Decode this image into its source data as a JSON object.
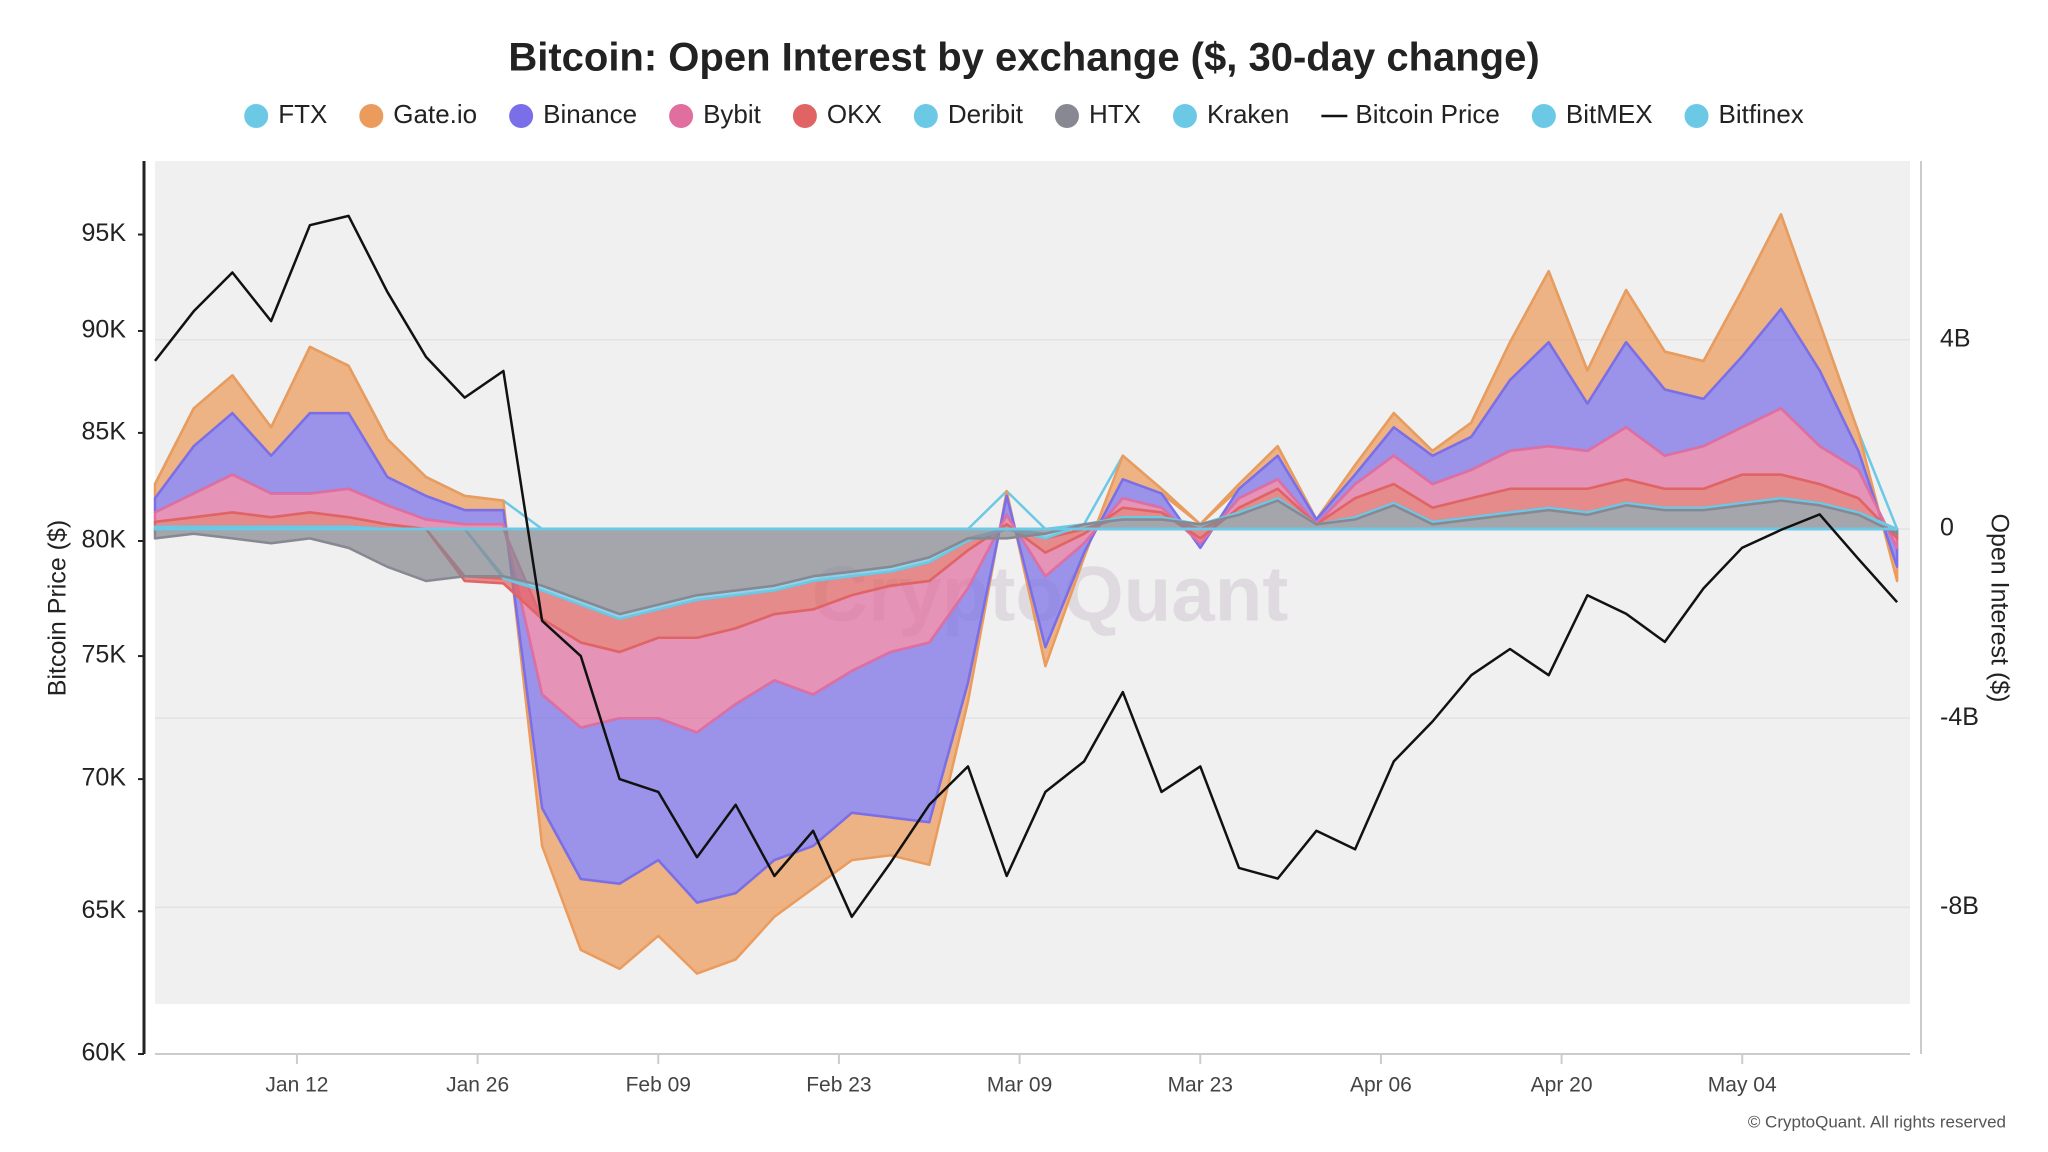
{
  "chart_data": {
    "type": "area",
    "title": "Bitcoin: Open Interest by exchange ($, 30-day change)",
    "ylabel": "Bitcoin Price ($)",
    "y2label": "Open Interest ($)",
    "watermark": "CryptoQuant",
    "credit": "© CryptoQuant. All rights reserved",
    "yscale": "log",
    "grid": true,
    "legend": "top",
    "xlim": [
      0,
      136
    ],
    "ylim": [
      60000,
      99000
    ],
    "y2lim": [
      -11.1,
      7.78
    ],
    "xticks": [
      {
        "value": 11,
        "label": "Jan 12"
      },
      {
        "value": 25,
        "label": "Jan 26"
      },
      {
        "value": 39,
        "label": "Feb 09"
      },
      {
        "value": 53,
        "label": "Feb 23"
      },
      {
        "value": 67,
        "label": "Mar 09"
      },
      {
        "value": 81,
        "label": "Mar 23"
      },
      {
        "value": 95,
        "label": "Apr 06"
      },
      {
        "value": 109,
        "label": "Apr 20"
      },
      {
        "value": 123,
        "label": "May 04"
      }
    ],
    "yticks": [
      {
        "value": 60000,
        "label": "60K"
      },
      {
        "value": 65000,
        "label": "65K"
      },
      {
        "value": 70000,
        "label": "70K"
      },
      {
        "value": 75000,
        "label": "75K"
      },
      {
        "value": 80000,
        "label": "80K"
      },
      {
        "value": 85000,
        "label": "85K"
      },
      {
        "value": 90000,
        "label": "90K"
      },
      {
        "value": 95000,
        "label": "95K"
      }
    ],
    "y2ticks": [
      {
        "value": -8,
        "label": "-8B"
      },
      {
        "value": -4,
        "label": "-4B"
      },
      0,
      {
        "value": 4,
        "label": "4B"
      }
    ],
    "x": [
      0,
      3,
      6,
      9,
      12,
      15,
      18,
      21,
      24,
      27,
      30,
      33,
      36,
      39,
      42,
      45,
      48,
      51,
      54,
      57,
      60,
      63,
      66,
      69,
      72,
      75,
      78,
      81,
      84,
      87,
      90,
      93,
      96,
      99,
      102,
      105,
      108,
      111,
      114,
      117,
      120,
      123,
      126,
      129,
      132,
      135
    ],
    "series": [
      {
        "name": "FTX",
        "color": "#6cc9e6",
        "axis": "y2",
        "values": [
          0,
          0,
          0,
          0,
          0,
          0,
          0,
          0,
          0,
          0,
          0,
          0,
          0,
          0,
          0,
          0,
          0,
          0,
          0,
          0,
          0,
          0,
          0,
          0,
          0,
          0,
          0,
          0,
          0,
          0,
          0,
          0,
          0,
          0,
          0,
          0,
          0,
          0,
          0,
          0,
          0,
          0,
          0,
          0,
          0,
          0
        ]
      },
      {
        "name": "Gate.io",
        "color": "#eb9b5b",
        "axis": "y2",
        "values": [
          0.3,
          0.8,
          0.8,
          0.6,
          1.4,
          1.0,
          0.8,
          0.4,
          0.3,
          0.2,
          -0.8,
          -1.5,
          -1.8,
          -1.6,
          -1.5,
          -1.4,
          -1.2,
          -0.9,
          -1.0,
          -0.8,
          -0.9,
          -0.4,
          0.1,
          -0.4,
          -0.1,
          0.5,
          0.1,
          0.0,
          0.1,
          0.2,
          0.0,
          0.2,
          0.3,
          0.1,
          0.3,
          0.8,
          1.5,
          0.7,
          1.1,
          0.8,
          0.8,
          1.4,
          2.0,
          1.0,
          0.4,
          -0.3
        ]
      },
      {
        "name": "Binance",
        "color": "#7a6fe8",
        "axis": "y2",
        "values": [
          0.3,
          1.0,
          1.3,
          0.8,
          1.7,
          1.6,
          0.6,
          0.5,
          0.3,
          0.3,
          -2.4,
          -3.2,
          -3.5,
          -3.0,
          -3.6,
          -4.0,
          -3.8,
          -3.2,
          -3.0,
          -3.5,
          -3.8,
          -2.0,
          0.4,
          -1.5,
          -0.2,
          0.4,
          0.3,
          -0.1,
          0.2,
          0.5,
          0.1,
          0.2,
          0.6,
          0.6,
          0.7,
          1.5,
          2.2,
          1.0,
          1.8,
          1.4,
          1.0,
          1.5,
          2.1,
          1.6,
          0.4,
          -0.4
        ]
      },
      {
        "name": "Bybit",
        "color": "#e06fa0",
        "axis": "y2",
        "values": [
          0.2,
          0.5,
          0.8,
          0.5,
          0.4,
          0.6,
          0.4,
          0.2,
          0.1,
          0.1,
          -1.6,
          -1.8,
          -1.4,
          -1.7,
          -2.0,
          -1.6,
          -1.4,
          -1.8,
          -1.6,
          -1.4,
          -1.3,
          -0.8,
          0.2,
          -0.5,
          -0.2,
          0.2,
          0.1,
          -0.1,
          0.2,
          0.2,
          0.0,
          0.3,
          0.6,
          0.5,
          0.6,
          0.8,
          0.9,
          0.8,
          1.1,
          0.7,
          0.9,
          1.0,
          1.4,
          0.8,
          0.6,
          -0.2
        ]
      },
      {
        "name": "OKX",
        "color": "#e06464",
        "axis": "y2",
        "values": [
          0.1,
          0.2,
          0.3,
          0.2,
          0.3,
          0.2,
          0.1,
          0.0,
          -0.1,
          -0.1,
          -0.6,
          -0.8,
          -0.7,
          -0.6,
          -0.8,
          -0.7,
          -0.5,
          -0.6,
          -0.4,
          -0.3,
          -0.4,
          -0.2,
          0.1,
          -0.3,
          -0.1,
          0.2,
          0.1,
          -0.2,
          0.1,
          0.2,
          0.0,
          0.4,
          0.4,
          0.3,
          0.4,
          0.5,
          0.4,
          0.5,
          0.5,
          0.4,
          0.4,
          0.6,
          0.5,
          0.4,
          0.3,
          -0.1
        ]
      },
      {
        "name": "Deribit",
        "color": "#6cc9e6",
        "axis": "y2",
        "values": [
          0.05,
          0.05,
          0.05,
          0.05,
          0.05,
          0.05,
          0.0,
          0.0,
          0.0,
          -0.05,
          -0.1,
          -0.1,
          -0.1,
          -0.1,
          -0.1,
          -0.1,
          -0.1,
          -0.1,
          -0.1,
          -0.1,
          -0.1,
          -0.05,
          0.0,
          -0.1,
          0.0,
          0.05,
          0.05,
          0.0,
          0.05,
          0.05,
          0.0,
          0.05,
          0.05,
          0.05,
          0.05,
          0.05,
          0.05,
          0.05,
          0.05,
          0.05,
          0.05,
          0.05,
          0.05,
          0.05,
          0.05,
          0.0
        ]
      },
      {
        "name": "HTX",
        "color": "#888892",
        "axis": "y2",
        "values": [
          -0.2,
          -0.1,
          -0.2,
          -0.3,
          -0.2,
          -0.4,
          -0.8,
          -1.1,
          -1.0,
          -1.0,
          -1.2,
          -1.5,
          -1.8,
          -1.6,
          -1.4,
          -1.3,
          -1.2,
          -1.0,
          -0.9,
          -0.8,
          -0.6,
          -0.2,
          -0.2,
          -0.1,
          0.1,
          0.2,
          0.2,
          0.1,
          0.3,
          0.6,
          0.1,
          0.2,
          0.5,
          0.1,
          0.2,
          0.3,
          0.4,
          0.3,
          0.5,
          0.4,
          0.4,
          0.5,
          0.6,
          0.5,
          0.3,
          -0.1
        ]
      },
      {
        "name": "Kraken",
        "color": "#6cc9e6",
        "axis": "y2",
        "values": [
          0,
          0,
          0,
          0,
          0,
          0,
          0,
          0,
          0,
          0,
          0,
          0,
          0,
          0,
          0,
          0,
          0,
          0,
          0,
          0,
          0,
          0,
          0,
          0,
          0,
          0,
          0,
          0,
          0,
          0,
          0,
          0,
          0,
          0,
          0,
          0,
          0,
          0,
          0,
          0,
          0,
          0,
          0,
          0,
          0,
          0
        ]
      },
      {
        "name": "Bitcoin Price",
        "color": "#111111",
        "type": "line",
        "axis": "y",
        "values": [
          88500,
          91000,
          93000,
          90500,
          95500,
          96000,
          92000,
          88700,
          86700,
          88000,
          76500,
          75000,
          70000,
          69500,
          67000,
          69000,
          66300,
          68000,
          64800,
          66800,
          69000,
          70500,
          66300,
          69500,
          70700,
          73500,
          69500,
          70500,
          66600,
          66200,
          68000,
          67300,
          70700,
          72300,
          74200,
          75300,
          74200,
          77600,
          76800,
          75600,
          77900,
          79700,
          80500,
          81200,
          79200,
          77300
        ]
      },
      {
        "name": "BitMEX",
        "color": "#6cc9e6",
        "axis": "y2",
        "values": [
          0,
          0,
          0,
          0,
          0,
          0,
          0,
          0,
          0,
          0,
          0,
          0,
          0,
          0,
          0,
          0,
          0,
          0,
          0,
          0,
          0,
          0,
          0,
          0,
          0,
          0,
          0,
          0,
          0,
          0,
          0,
          0,
          0,
          0,
          0,
          0,
          0,
          0,
          0,
          0,
          0,
          0,
          0,
          0,
          0,
          0
        ]
      },
      {
        "name": "Bitfinex",
        "color": "#6cc9e6",
        "axis": "y2",
        "values": [
          0,
          0,
          0,
          0,
          0,
          0,
          0,
          0,
          0,
          0,
          0,
          0,
          0,
          0,
          0,
          0,
          0,
          0,
          0,
          0,
          0,
          0,
          0,
          0,
          0,
          0,
          0,
          0,
          0,
          0,
          0,
          0,
          0,
          0,
          0,
          0,
          0,
          0,
          0,
          0,
          0,
          0,
          0,
          0,
          0,
          0
        ]
      }
    ]
  }
}
